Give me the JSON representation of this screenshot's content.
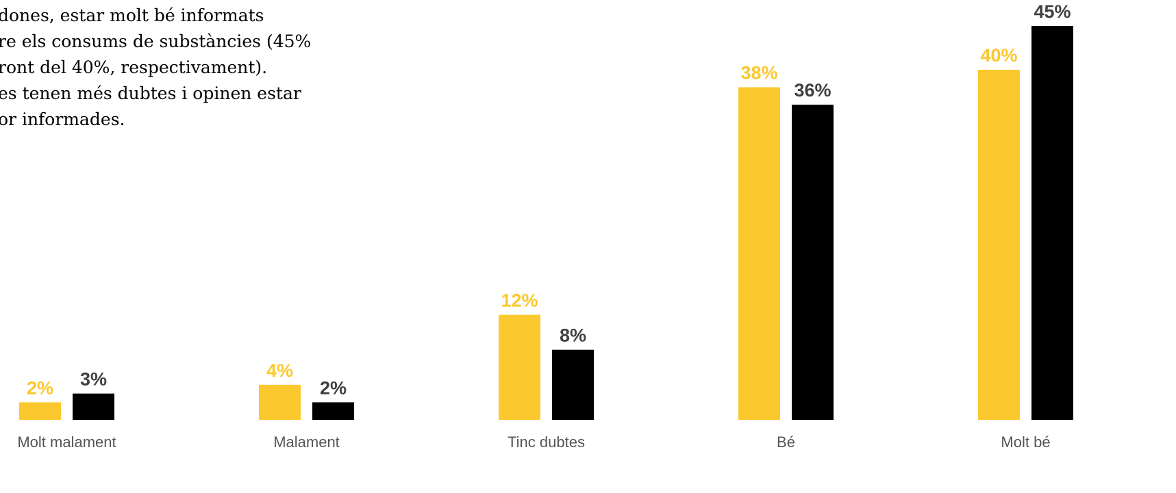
{
  "intro_text": [
    "dones, estar molt bé informats",
    "re els consums de substàncies (45%",
    "ront del 40%, respectivament).",
    "es tenen més dubtes i opinen estar",
    "or informades."
  ],
  "chart_data": {
    "type": "bar",
    "categories": [
      "Molt malament",
      "Malament",
      "Tinc dubtes",
      "Bé",
      "Molt bé"
    ],
    "series": [
      {
        "values": [
          2,
          4,
          12,
          38,
          40
        ],
        "labels": [
          "2%",
          "4%",
          "12%",
          "38%",
          "40%"
        ],
        "color": "#FBC82D"
      },
      {
        "values": [
          3,
          2,
          8,
          36,
          45
        ],
        "labels": [
          "3%",
          "2%",
          "8%",
          "36%",
          "45%"
        ],
        "color": "#000000",
        "label_color": "#404040"
      }
    ],
    "ylim": [
      0,
      45
    ],
    "grid": false,
    "legend": "none",
    "title": "",
    "xlabel": "",
    "ylabel": ""
  }
}
